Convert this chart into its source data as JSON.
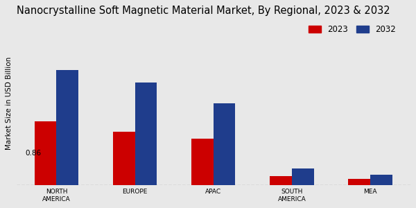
{
  "title": "Nanocrystalline Soft Magnetic Material Market, By Regional, 2023 & 2032",
  "categories": [
    "NORTH\nAMERICA",
    "EUROPE",
    "APAC",
    "SOUTH\nAMERICA",
    "MEA"
  ],
  "values_2023": [
    0.86,
    0.72,
    0.62,
    0.12,
    0.08
  ],
  "values_2032": [
    1.55,
    1.38,
    1.1,
    0.22,
    0.14
  ],
  "color_2023": "#cc0000",
  "color_2032": "#1f3d8c",
  "ylabel": "Market Size in USD Billion",
  "legend_2023": "2023",
  "legend_2032": "2032",
  "annotation_text": "0.86",
  "annotation_bar": 0,
  "bar_width": 0.28,
  "ylim": [
    0,
    2.2
  ],
  "background_color": "#e8e8e8",
  "title_fontsize": 10.5,
  "axis_label_fontsize": 7.5,
  "tick_fontsize": 6.5,
  "legend_fontsize": 8.5,
  "annotation_fontsize": 7.5
}
